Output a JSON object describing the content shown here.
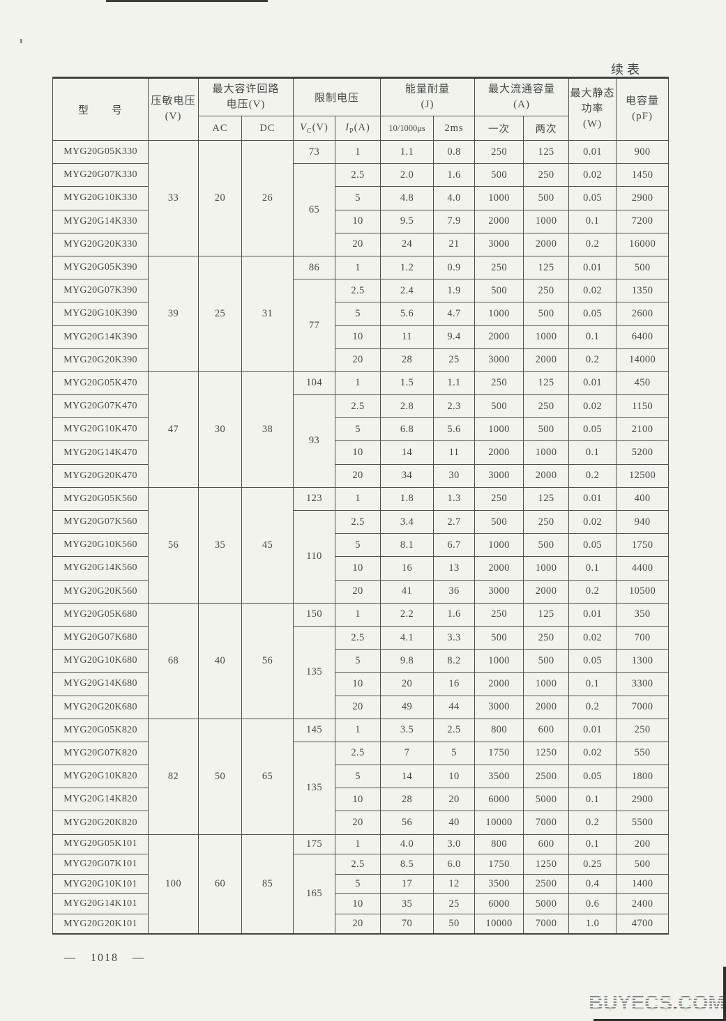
{
  "page": {
    "continued_label": "续表",
    "page_number": "—  1018  —",
    "watermark": {
      "prefix": "BUYECS",
      "dot": ".",
      "suffix": "COM"
    }
  },
  "table": {
    "header": {
      "model": "型　　号",
      "varistor_voltage_l1": "压敏电压",
      "varistor_voltage_l2": "(V)",
      "max_circuit_l1": "最大容许回路",
      "max_circuit_l2": "电压(V)",
      "ac": "AC",
      "dc": "DC",
      "clamping": "限制电压",
      "vc": {
        "letter": "V",
        "sub": "C",
        "unit": "(V)"
      },
      "ip": {
        "letter": "I",
        "sub": "P",
        "unit": "(A)"
      },
      "energy_l1": "能量耐量",
      "energy_l2": "(J)",
      "energy_c1": "10/1000μs",
      "energy_c2": "2ms",
      "surge_l1": "最大流通容量",
      "surge_l2": "(A)",
      "surge_c1": "一次",
      "surge_c2": "两次",
      "power_l1": "最大静态",
      "power_l2": "功率",
      "power_l3": "(W)",
      "cap_l1": "电容量",
      "cap_l2": "(pF)"
    },
    "groups": [
      {
        "varistor_voltage": "33",
        "ac": "20",
        "dc": "26",
        "vc_first": "73",
        "vc_rest": "65",
        "rows": [
          {
            "model": "MYG20G05K330",
            "ip": "1",
            "e1": "1.1",
            "e2": "0.8",
            "once": "250",
            "twice": "125",
            "power": "0.01",
            "cap": "900"
          },
          {
            "model": "MYG20G07K330",
            "ip": "2.5",
            "e1": "2.0",
            "e2": "1.6",
            "once": "500",
            "twice": "250",
            "power": "0.02",
            "cap": "1450"
          },
          {
            "model": "MYG20G10K330",
            "ip": "5",
            "e1": "4.8",
            "e2": "4.0",
            "once": "1000",
            "twice": "500",
            "power": "0.05",
            "cap": "2900"
          },
          {
            "model": "MYG20G14K330",
            "ip": "10",
            "e1": "9.5",
            "e2": "7.9",
            "once": "2000",
            "twice": "1000",
            "power": "0.1",
            "cap": "7200"
          },
          {
            "model": "MYG20G20K330",
            "ip": "20",
            "e1": "24",
            "e2": "21",
            "once": "3000",
            "twice": "2000",
            "power": "0.2",
            "cap": "16000"
          }
        ]
      },
      {
        "varistor_voltage": "39",
        "ac": "25",
        "dc": "31",
        "vc_first": "86",
        "vc_rest": "77",
        "rows": [
          {
            "model": "MYG20G05K390",
            "ip": "1",
            "e1": "1.2",
            "e2": "0.9",
            "once": "250",
            "twice": "125",
            "power": "0.01",
            "cap": "500"
          },
          {
            "model": "MYG20G07K390",
            "ip": "2.5",
            "e1": "2.4",
            "e2": "1.9",
            "once": "500",
            "twice": "250",
            "power": "0.02",
            "cap": "1350"
          },
          {
            "model": "MYG20G10K390",
            "ip": "5",
            "e1": "5.6",
            "e2": "4.7",
            "once": "1000",
            "twice": "500",
            "power": "0.05",
            "cap": "2600"
          },
          {
            "model": "MYG20G14K390",
            "ip": "10",
            "e1": "11",
            "e2": "9.4",
            "once": "2000",
            "twice": "1000",
            "power": "0.1",
            "cap": "6400"
          },
          {
            "model": "MYG20G20K390",
            "ip": "20",
            "e1": "28",
            "e2": "25",
            "once": "3000",
            "twice": "2000",
            "power": "0.2",
            "cap": "14000"
          }
        ]
      },
      {
        "varistor_voltage": "47",
        "ac": "30",
        "dc": "38",
        "vc_first": "104",
        "vc_rest": "93",
        "rows": [
          {
            "model": "MYG20G05K470",
            "ip": "1",
            "e1": "1.5",
            "e2": "1.1",
            "once": "250",
            "twice": "125",
            "power": "0.01",
            "cap": "450"
          },
          {
            "model": "MYG20G07K470",
            "ip": "2.5",
            "e1": "2.8",
            "e2": "2.3",
            "once": "500",
            "twice": "250",
            "power": "0.02",
            "cap": "1150"
          },
          {
            "model": "MYG20G10K470",
            "ip": "5",
            "e1": "6.8",
            "e2": "5.6",
            "once": "1000",
            "twice": "500",
            "power": "0.05",
            "cap": "2100"
          },
          {
            "model": "MYG20G14K470",
            "ip": "10",
            "e1": "14",
            "e2": "11",
            "once": "2000",
            "twice": "1000",
            "power": "0.1",
            "cap": "5200"
          },
          {
            "model": "MYG20G20K470",
            "ip": "20",
            "e1": "34",
            "e2": "30",
            "once": "3000",
            "twice": "2000",
            "power": "0.2",
            "cap": "12500"
          }
        ]
      },
      {
        "varistor_voltage": "56",
        "ac": "35",
        "dc": "45",
        "vc_first": "123",
        "vc_rest": "110",
        "rows": [
          {
            "model": "MYG20G05K560",
            "ip": "1",
            "e1": "1.8",
            "e2": "1.3",
            "once": "250",
            "twice": "125",
            "power": "0.01",
            "cap": "400"
          },
          {
            "model": "MYG20G07K560",
            "ip": "2.5",
            "e1": "3.4",
            "e2": "2.7",
            "once": "500",
            "twice": "250",
            "power": "0.02",
            "cap": "940"
          },
          {
            "model": "MYG20G10K560",
            "ip": "5",
            "e1": "8.1",
            "e2": "6.7",
            "once": "1000",
            "twice": "500",
            "power": "0.05",
            "cap": "1750"
          },
          {
            "model": "MYG20G14K560",
            "ip": "10",
            "e1": "16",
            "e2": "13",
            "once": "2000",
            "twice": "1000",
            "power": "0.1",
            "cap": "4400"
          },
          {
            "model": "MYG20G20K560",
            "ip": "20",
            "e1": "41",
            "e2": "36",
            "once": "3000",
            "twice": "2000",
            "power": "0.2",
            "cap": "10500"
          }
        ]
      },
      {
        "varistor_voltage": "68",
        "ac": "40",
        "dc": "56",
        "vc_first": "150",
        "vc_rest": "135",
        "rows": [
          {
            "model": "MYG20G05K680",
            "ip": "1",
            "e1": "2.2",
            "e2": "1.6",
            "once": "250",
            "twice": "125",
            "power": "0.01",
            "cap": "350"
          },
          {
            "model": "MYG20G07K680",
            "ip": "2.5",
            "e1": "4.1",
            "e2": "3.3",
            "once": "500",
            "twice": "250",
            "power": "0.02",
            "cap": "700"
          },
          {
            "model": "MYG20G10K680",
            "ip": "5",
            "e1": "9.8",
            "e2": "8.2",
            "once": "1000",
            "twice": "500",
            "power": "0.05",
            "cap": "1300"
          },
          {
            "model": "MYG20G14K680",
            "ip": "10",
            "e1": "20",
            "e2": "16",
            "once": "2000",
            "twice": "1000",
            "power": "0.1",
            "cap": "3300"
          },
          {
            "model": "MYG20G20K680",
            "ip": "20",
            "e1": "49",
            "e2": "44",
            "once": "3000",
            "twice": "2000",
            "power": "0.2",
            "cap": "7000"
          }
        ]
      },
      {
        "varistor_voltage": "82",
        "ac": "50",
        "dc": "65",
        "vc_first": "145",
        "vc_rest": "135",
        "rows": [
          {
            "model": "MYG20G05K820",
            "ip": "1",
            "e1": "3.5",
            "e2": "2.5",
            "once": "800",
            "twice": "600",
            "power": "0.01",
            "cap": "250"
          },
          {
            "model": "MYG20G07K820",
            "ip": "2.5",
            "e1": "7",
            "e2": "5",
            "once": "1750",
            "twice": "1250",
            "power": "0.02",
            "cap": "550"
          },
          {
            "model": "MYG20G10K820",
            "ip": "5",
            "e1": "14",
            "e2": "10",
            "once": "3500",
            "twice": "2500",
            "power": "0.05",
            "cap": "1800"
          },
          {
            "model": "MYG20G14K820",
            "ip": "10",
            "e1": "28",
            "e2": "20",
            "once": "6000",
            "twice": "5000",
            "power": "0.1",
            "cap": "2900"
          },
          {
            "model": "MYG20G20K820",
            "ip": "20",
            "e1": "56",
            "e2": "40",
            "once": "10000",
            "twice": "7000",
            "power": "0.2",
            "cap": "5500"
          }
        ]
      },
      {
        "varistor_voltage": "100",
        "ac": "60",
        "dc": "85",
        "vc_first": "175",
        "vc_rest": "165",
        "rows": [
          {
            "model": "MYG20G05K101",
            "ip": "1",
            "e1": "4.0",
            "e2": "3.0",
            "once": "800",
            "twice": "600",
            "power": "0.1",
            "cap": "200"
          },
          {
            "model": "MYG20G07K101",
            "ip": "2.5",
            "e1": "8.5",
            "e2": "6.0",
            "once": "1750",
            "twice": "1250",
            "power": "0.25",
            "cap": "500"
          },
          {
            "model": "MYG20G10K101",
            "ip": "5",
            "e1": "17",
            "e2": "12",
            "once": "3500",
            "twice": "2500",
            "power": "0.4",
            "cap": "1400"
          },
          {
            "model": "MYG20G14K101",
            "ip": "10",
            "e1": "35",
            "e2": "25",
            "once": "6000",
            "twice": "5000",
            "power": "0.6",
            "cap": "2400"
          },
          {
            "model": "MYG20G20K101",
            "ip": "20",
            "e1": "70",
            "e2": "50",
            "once": "10000",
            "twice": "7000",
            "power": "1.0",
            "cap": "4700"
          }
        ]
      }
    ]
  }
}
